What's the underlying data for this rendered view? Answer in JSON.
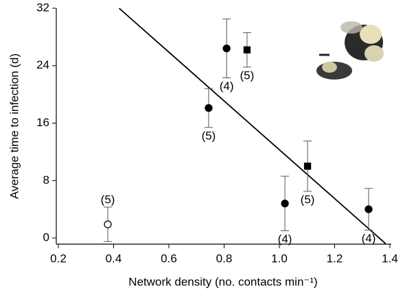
{
  "chart_data": {
    "type": "scatter",
    "y_label": "Average time to infection (d)",
    "x_label": "Network density (no. contacts min⁻¹)",
    "xlim": [
      0.2,
      1.4
    ],
    "ylim": [
      -0.8,
      32
    ],
    "xticks": [
      0.2,
      0.4,
      0.6,
      0.8,
      {
        "value": 1,
        "label": "1.0"
      },
      1.2,
      1.4
    ],
    "yticks": [
      0,
      8,
      16,
      24,
      32
    ],
    "series": [
      {
        "marker": "circle",
        "color": "#000000",
        "fill": "#ffffff",
        "x": [
          0.379
        ],
        "values": [
          1.9
        ],
        "errors": [
          2.4
        ],
        "n_labels": [
          "(5)"
        ],
        "label_pos": [
          "above"
        ]
      },
      {
        "marker": "circle",
        "color": "#000000",
        "fill": "#000000",
        "x": [
          0.744,
          0.809,
          1.02,
          1.323
        ],
        "values": [
          18.1,
          26.4,
          4.8,
          4.0
        ],
        "errors": [
          2.7,
          4.1,
          3.8,
          2.9
        ],
        "n_labels": [
          "(5)",
          "(4)",
          "(4)",
          "(4)"
        ],
        "label_pos": [
          "below",
          "below",
          "below",
          "below"
        ]
      },
      {
        "marker": "square",
        "color": "#000000",
        "fill": "#000000",
        "x": [
          0.883,
          1.102
        ],
        "values": [
          26.2,
          10.0
        ],
        "errors": [
          2.4,
          3.5
        ],
        "n_labels": [
          "(5)",
          "(5)"
        ],
        "label_pos": [
          "below",
          "below"
        ]
      }
    ],
    "fit_line": {
      "x": [
        0.42,
        1.385
      ],
      "y": [
        32,
        -0.8
      ]
    }
  }
}
